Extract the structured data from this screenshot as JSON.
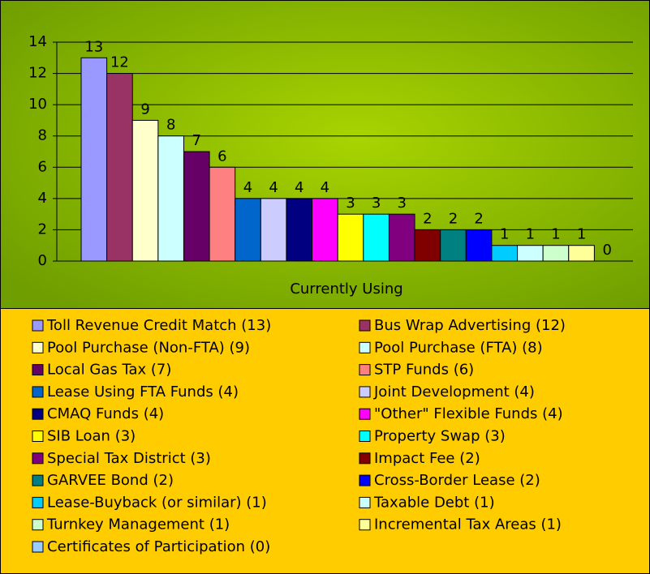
{
  "chart_data": {
    "type": "bar",
    "categories": [
      "Currently Using"
    ],
    "ylim": [
      0,
      14
    ],
    "yticks": [
      0,
      2,
      4,
      6,
      8,
      10,
      12,
      14
    ],
    "grid": true,
    "legend": "bottom",
    "series": [
      {
        "name": "Toll Revenue Credit Match (13)",
        "color": "#9999ff",
        "values": [
          13
        ]
      },
      {
        "name": "Bus Wrap Advertising (12)",
        "color": "#993366",
        "values": [
          12
        ]
      },
      {
        "name": "Pool Purchase (Non-FTA) (9)",
        "color": "#ffffcc",
        "values": [
          9
        ]
      },
      {
        "name": "Pool Purchase (FTA) (8)",
        "color": "#ccffff",
        "values": [
          8
        ]
      },
      {
        "name": "Local Gas Tax (7)",
        "color": "#660066",
        "values": [
          7
        ]
      },
      {
        "name": "STP Funds (6)",
        "color": "#ff8080",
        "values": [
          6
        ]
      },
      {
        "name": "Lease Using FTA Funds (4)",
        "color": "#0066cc",
        "values": [
          4
        ]
      },
      {
        "name": "Joint Development (4)",
        "color": "#ccccff",
        "values": [
          4
        ]
      },
      {
        "name": "CMAQ Funds (4)",
        "color": "#000080",
        "values": [
          4
        ]
      },
      {
        "name": "\"Other\" Flexible Funds (4)",
        "color": "#ff00ff",
        "values": [
          4
        ]
      },
      {
        "name": "SIB Loan (3)",
        "color": "#ffff00",
        "values": [
          3
        ]
      },
      {
        "name": "Property Swap (3)",
        "color": "#00ffff",
        "values": [
          3
        ]
      },
      {
        "name": "Special Tax District (3)",
        "color": "#800080",
        "values": [
          3
        ]
      },
      {
        "name": "Impact Fee (2)",
        "color": "#800000",
        "values": [
          2
        ]
      },
      {
        "name": "GARVEE Bond (2)",
        "color": "#008080",
        "values": [
          2
        ]
      },
      {
        "name": "Cross-Border Lease (2)",
        "color": "#0000ff",
        "values": [
          2
        ]
      },
      {
        "name": "Lease-Buyback (or similar) (1)",
        "color": "#00ccff",
        "values": [
          1
        ]
      },
      {
        "name": "Taxable Debt (1)",
        "color": "#ccffff",
        "values": [
          1
        ]
      },
      {
        "name": "Turnkey Management (1)",
        "color": "#ccffcc",
        "values": [
          1
        ]
      },
      {
        "name": "Incremental Tax Areas (1)",
        "color": "#ffff99",
        "values": [
          1
        ]
      },
      {
        "name": "Certificates of Participation (0)",
        "color": "#99ccff",
        "values": [
          0
        ]
      }
    ]
  }
}
